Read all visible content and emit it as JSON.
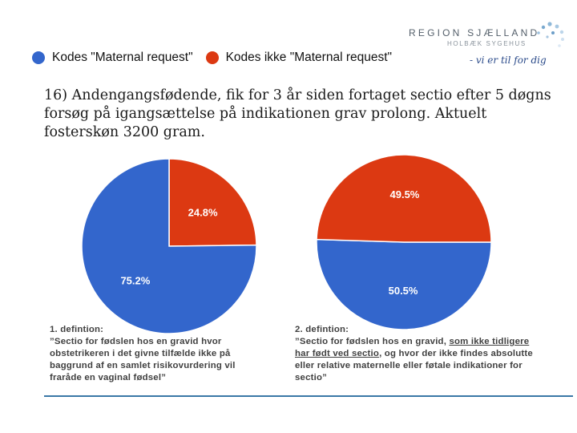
{
  "logo": {
    "name": "REGION SJÆLLAND",
    "subtitle": "HOLBÆK SYGEHUS",
    "tagline": "- vi er til for dig"
  },
  "legend": {
    "items": [
      {
        "label": "Kodes \"Maternal request\"",
        "color": "#3366cc"
      },
      {
        "label": "Kodes ikke \"Maternal request\"",
        "color": "#dc3912"
      }
    ]
  },
  "question": "16) Andengangsfødende, fik for 3 år siden fortaget sectio efter 5 døgns forsøg på igangsættelse på indikationen grav prolong. Aktuelt fosterskøn 3200 gram.",
  "chart_data": [
    {
      "type": "pie",
      "title": "1. defintion",
      "categories": [
        "Kodes \"Maternal request\"",
        "Kodes ikke \"Maternal request\""
      ],
      "values": [
        75.2,
        24.8
      ],
      "labels": [
        "75.2%",
        "24.8%"
      ]
    },
    {
      "type": "pie",
      "title": "2. defintion",
      "categories": [
        "Kodes \"Maternal request\"",
        "Kodes ikke \"Maternal request\""
      ],
      "values": [
        50.5,
        49.5
      ],
      "labels": [
        "50.5%",
        "49.5%"
      ]
    }
  ],
  "definitions": {
    "def1": {
      "title": "1. defintion:",
      "text": "”Sectio for fødslen hos en gravid hvor obstetrikeren i det givne tilfælde ikke på baggrund af en samlet risikovurdering vil fraråde en vaginal fødsel”"
    },
    "def2": {
      "title": "2. defintion:",
      "text_a": "”Sectio for fødslen hos en gravid, ",
      "text_u": "som ikke tidligere har født ved sectio",
      "text_b": ", og hvor der ikke findes absolutte eller relative maternelle eller føtale indikationer for sectio”"
    }
  }
}
